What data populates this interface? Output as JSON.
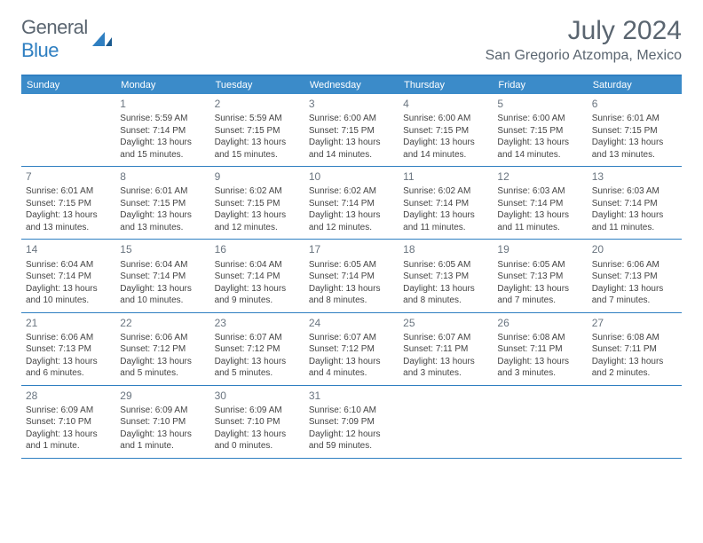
{
  "logo": {
    "text1": "General",
    "text2": "Blue"
  },
  "title": "July 2024",
  "location": "San Gregorio Atzompa, Mexico",
  "colors": {
    "header_bg": "#3b8bc9",
    "border": "#2f7fc1",
    "text_gray": "#5a6570"
  },
  "day_headers": [
    "Sunday",
    "Monday",
    "Tuesday",
    "Wednesday",
    "Thursday",
    "Friday",
    "Saturday"
  ],
  "weeks": [
    [
      {
        "num": "",
        "sunrise": "",
        "sunset": "",
        "daylight1": "",
        "daylight2": ""
      },
      {
        "num": "1",
        "sunrise": "Sunrise: 5:59 AM",
        "sunset": "Sunset: 7:14 PM",
        "daylight1": "Daylight: 13 hours",
        "daylight2": "and 15 minutes."
      },
      {
        "num": "2",
        "sunrise": "Sunrise: 5:59 AM",
        "sunset": "Sunset: 7:15 PM",
        "daylight1": "Daylight: 13 hours",
        "daylight2": "and 15 minutes."
      },
      {
        "num": "3",
        "sunrise": "Sunrise: 6:00 AM",
        "sunset": "Sunset: 7:15 PM",
        "daylight1": "Daylight: 13 hours",
        "daylight2": "and 14 minutes."
      },
      {
        "num": "4",
        "sunrise": "Sunrise: 6:00 AM",
        "sunset": "Sunset: 7:15 PM",
        "daylight1": "Daylight: 13 hours",
        "daylight2": "and 14 minutes."
      },
      {
        "num": "5",
        "sunrise": "Sunrise: 6:00 AM",
        "sunset": "Sunset: 7:15 PM",
        "daylight1": "Daylight: 13 hours",
        "daylight2": "and 14 minutes."
      },
      {
        "num": "6",
        "sunrise": "Sunrise: 6:01 AM",
        "sunset": "Sunset: 7:15 PM",
        "daylight1": "Daylight: 13 hours",
        "daylight2": "and 13 minutes."
      }
    ],
    [
      {
        "num": "7",
        "sunrise": "Sunrise: 6:01 AM",
        "sunset": "Sunset: 7:15 PM",
        "daylight1": "Daylight: 13 hours",
        "daylight2": "and 13 minutes."
      },
      {
        "num": "8",
        "sunrise": "Sunrise: 6:01 AM",
        "sunset": "Sunset: 7:15 PM",
        "daylight1": "Daylight: 13 hours",
        "daylight2": "and 13 minutes."
      },
      {
        "num": "9",
        "sunrise": "Sunrise: 6:02 AM",
        "sunset": "Sunset: 7:15 PM",
        "daylight1": "Daylight: 13 hours",
        "daylight2": "and 12 minutes."
      },
      {
        "num": "10",
        "sunrise": "Sunrise: 6:02 AM",
        "sunset": "Sunset: 7:14 PM",
        "daylight1": "Daylight: 13 hours",
        "daylight2": "and 12 minutes."
      },
      {
        "num": "11",
        "sunrise": "Sunrise: 6:02 AM",
        "sunset": "Sunset: 7:14 PM",
        "daylight1": "Daylight: 13 hours",
        "daylight2": "and 11 minutes."
      },
      {
        "num": "12",
        "sunrise": "Sunrise: 6:03 AM",
        "sunset": "Sunset: 7:14 PM",
        "daylight1": "Daylight: 13 hours",
        "daylight2": "and 11 minutes."
      },
      {
        "num": "13",
        "sunrise": "Sunrise: 6:03 AM",
        "sunset": "Sunset: 7:14 PM",
        "daylight1": "Daylight: 13 hours",
        "daylight2": "and 11 minutes."
      }
    ],
    [
      {
        "num": "14",
        "sunrise": "Sunrise: 6:04 AM",
        "sunset": "Sunset: 7:14 PM",
        "daylight1": "Daylight: 13 hours",
        "daylight2": "and 10 minutes."
      },
      {
        "num": "15",
        "sunrise": "Sunrise: 6:04 AM",
        "sunset": "Sunset: 7:14 PM",
        "daylight1": "Daylight: 13 hours",
        "daylight2": "and 10 minutes."
      },
      {
        "num": "16",
        "sunrise": "Sunrise: 6:04 AM",
        "sunset": "Sunset: 7:14 PM",
        "daylight1": "Daylight: 13 hours",
        "daylight2": "and 9 minutes."
      },
      {
        "num": "17",
        "sunrise": "Sunrise: 6:05 AM",
        "sunset": "Sunset: 7:14 PM",
        "daylight1": "Daylight: 13 hours",
        "daylight2": "and 8 minutes."
      },
      {
        "num": "18",
        "sunrise": "Sunrise: 6:05 AM",
        "sunset": "Sunset: 7:13 PM",
        "daylight1": "Daylight: 13 hours",
        "daylight2": "and 8 minutes."
      },
      {
        "num": "19",
        "sunrise": "Sunrise: 6:05 AM",
        "sunset": "Sunset: 7:13 PM",
        "daylight1": "Daylight: 13 hours",
        "daylight2": "and 7 minutes."
      },
      {
        "num": "20",
        "sunrise": "Sunrise: 6:06 AM",
        "sunset": "Sunset: 7:13 PM",
        "daylight1": "Daylight: 13 hours",
        "daylight2": "and 7 minutes."
      }
    ],
    [
      {
        "num": "21",
        "sunrise": "Sunrise: 6:06 AM",
        "sunset": "Sunset: 7:13 PM",
        "daylight1": "Daylight: 13 hours",
        "daylight2": "and 6 minutes."
      },
      {
        "num": "22",
        "sunrise": "Sunrise: 6:06 AM",
        "sunset": "Sunset: 7:12 PM",
        "daylight1": "Daylight: 13 hours",
        "daylight2": "and 5 minutes."
      },
      {
        "num": "23",
        "sunrise": "Sunrise: 6:07 AM",
        "sunset": "Sunset: 7:12 PM",
        "daylight1": "Daylight: 13 hours",
        "daylight2": "and 5 minutes."
      },
      {
        "num": "24",
        "sunrise": "Sunrise: 6:07 AM",
        "sunset": "Sunset: 7:12 PM",
        "daylight1": "Daylight: 13 hours",
        "daylight2": "and 4 minutes."
      },
      {
        "num": "25",
        "sunrise": "Sunrise: 6:07 AM",
        "sunset": "Sunset: 7:11 PM",
        "daylight1": "Daylight: 13 hours",
        "daylight2": "and 3 minutes."
      },
      {
        "num": "26",
        "sunrise": "Sunrise: 6:08 AM",
        "sunset": "Sunset: 7:11 PM",
        "daylight1": "Daylight: 13 hours",
        "daylight2": "and 3 minutes."
      },
      {
        "num": "27",
        "sunrise": "Sunrise: 6:08 AM",
        "sunset": "Sunset: 7:11 PM",
        "daylight1": "Daylight: 13 hours",
        "daylight2": "and 2 minutes."
      }
    ],
    [
      {
        "num": "28",
        "sunrise": "Sunrise: 6:09 AM",
        "sunset": "Sunset: 7:10 PM",
        "daylight1": "Daylight: 13 hours",
        "daylight2": "and 1 minute."
      },
      {
        "num": "29",
        "sunrise": "Sunrise: 6:09 AM",
        "sunset": "Sunset: 7:10 PM",
        "daylight1": "Daylight: 13 hours",
        "daylight2": "and 1 minute."
      },
      {
        "num": "30",
        "sunrise": "Sunrise: 6:09 AM",
        "sunset": "Sunset: 7:10 PM",
        "daylight1": "Daylight: 13 hours",
        "daylight2": "and 0 minutes."
      },
      {
        "num": "31",
        "sunrise": "Sunrise: 6:10 AM",
        "sunset": "Sunset: 7:09 PM",
        "daylight1": "Daylight: 12 hours",
        "daylight2": "and 59 minutes."
      },
      {
        "num": "",
        "sunrise": "",
        "sunset": "",
        "daylight1": "",
        "daylight2": ""
      },
      {
        "num": "",
        "sunrise": "",
        "sunset": "",
        "daylight1": "",
        "daylight2": ""
      },
      {
        "num": "",
        "sunrise": "",
        "sunset": "",
        "daylight1": "",
        "daylight2": ""
      }
    ]
  ]
}
